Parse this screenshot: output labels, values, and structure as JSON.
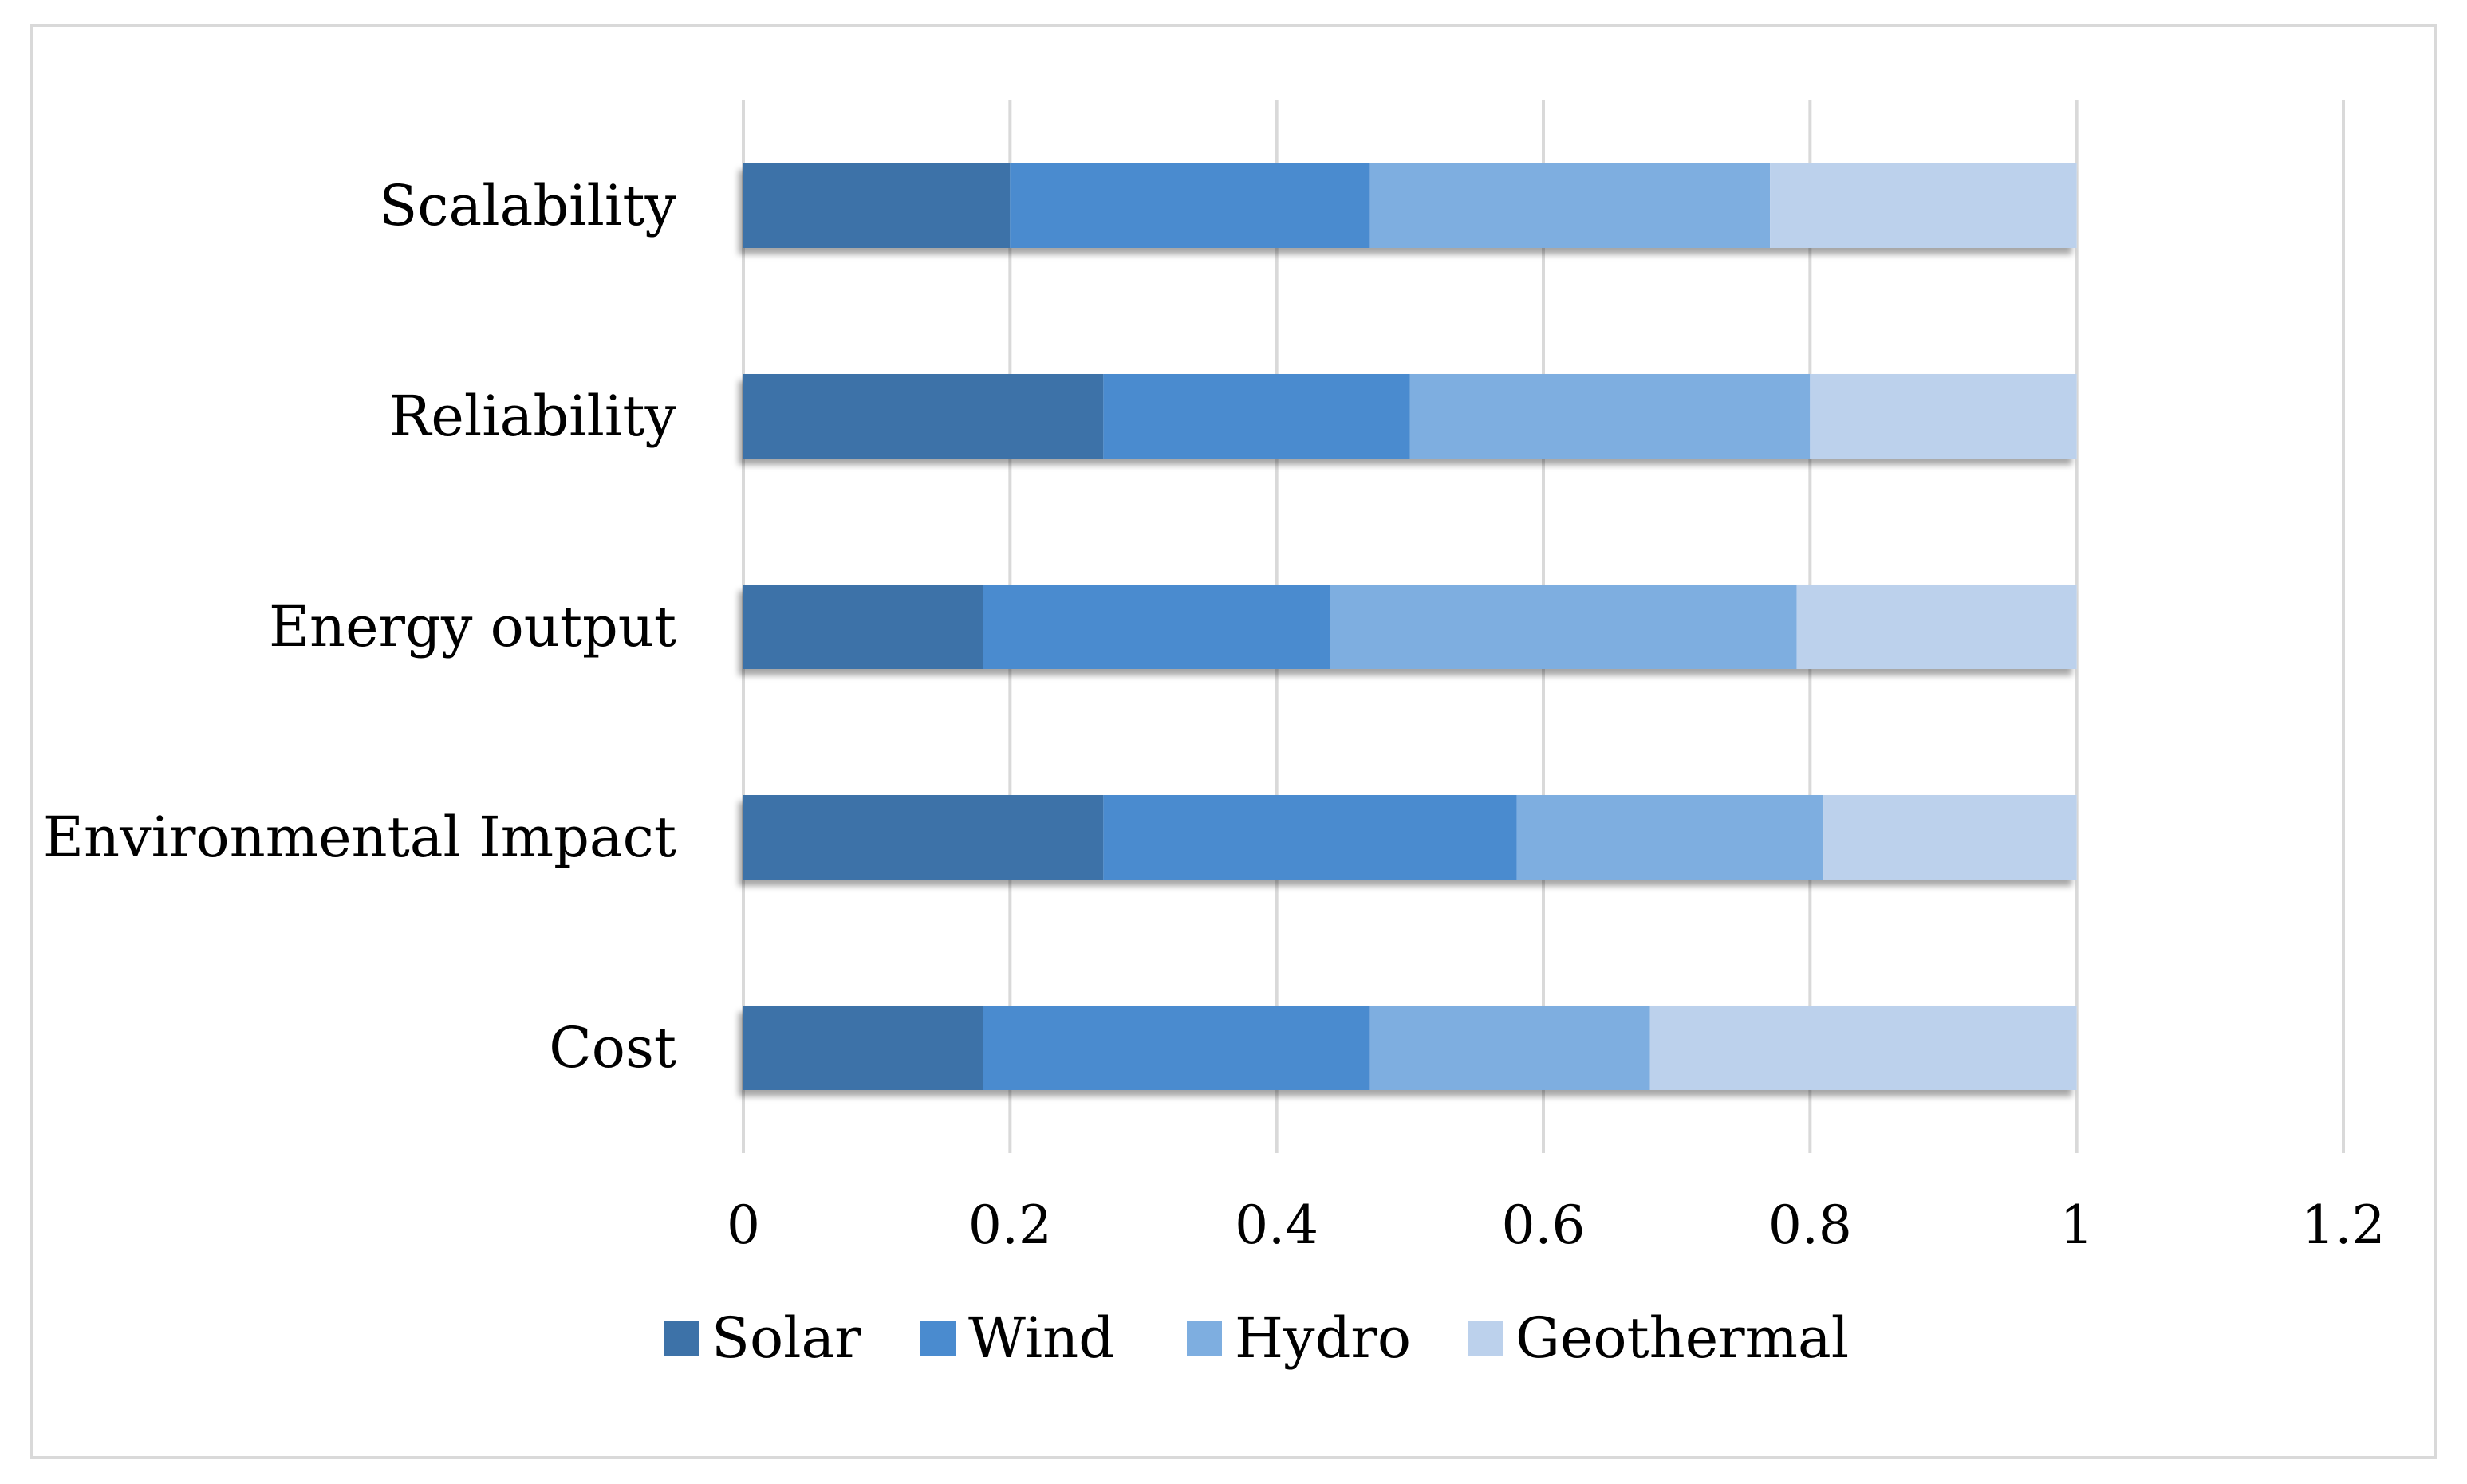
{
  "chart_data": {
    "type": "bar",
    "orientation": "horizontal",
    "stacked": true,
    "categories": [
      "Scalability",
      "Reliability",
      "Energy output",
      "Environmental Impact",
      "Cost"
    ],
    "series": [
      {
        "name": "Solar",
        "color": "#3d72a8",
        "values": [
          0.2,
          0.27,
          0.18,
          0.27,
          0.18
        ]
      },
      {
        "name": "Wind",
        "color": "#4a8bcf",
        "values": [
          0.27,
          0.23,
          0.26,
          0.31,
          0.29
        ]
      },
      {
        "name": "Hydro",
        "color": "#7eaee0",
        "values": [
          0.3,
          0.3,
          0.35,
          0.23,
          0.21
        ]
      },
      {
        "name": "Geothermal",
        "color": "#bcd1ec",
        "values": [
          0.23,
          0.2,
          0.21,
          0.19,
          0.32
        ]
      }
    ],
    "xlim": [
      0,
      1.2
    ],
    "x_ticks": [
      "0",
      "0.2",
      "0.4",
      "0.6",
      "0.8",
      "1",
      "1.2"
    ],
    "grid": true,
    "legend_position": "bottom",
    "title": "",
    "xlabel": "",
    "ylabel": ""
  }
}
